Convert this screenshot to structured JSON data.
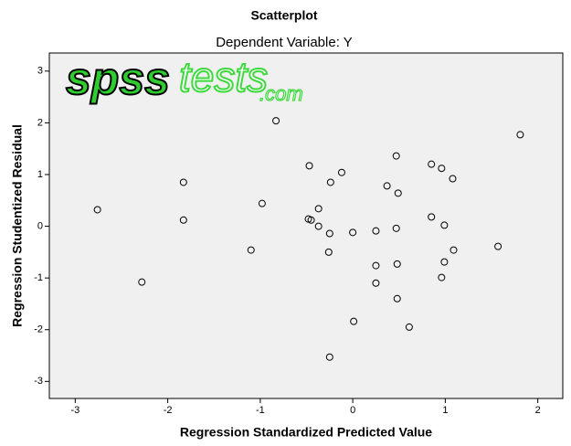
{
  "chart_data": {
    "type": "scatter",
    "title": "Scatterplot",
    "subtitle": "Dependent Variable: Y",
    "x_label": "Regression Standardized Predicted Value",
    "y_label": "Regression Studentized Residual",
    "watermark": [
      "spss",
      "tests",
      ".com"
    ],
    "x": [
      -2.76,
      -2.28,
      -1.83,
      -1.83,
      -0.83,
      -0.98,
      -1.1,
      -0.47,
      -0.48,
      -0.45,
      -0.37,
      -0.37,
      -0.12,
      -0.24,
      -0.25,
      -0.26,
      0.0,
      0.25,
      0.25,
      0.25,
      0.01,
      -0.25,
      0.47,
      0.37,
      0.49,
      0.47,
      0.48,
      0.48,
      0.61,
      0.85,
      0.96,
      1.08,
      0.85,
      0.99,
      1.09,
      0.99,
      0.96,
      1.57,
      1.81
    ],
    "values": [
      0.32,
      -1.08,
      0.85,
      0.12,
      2.04,
      0.44,
      -0.46,
      1.17,
      0.14,
      0.12,
      0.34,
      0.0,
      1.04,
      0.85,
      -0.14,
      -0.5,
      -0.12,
      -0.09,
      -0.76,
      -1.1,
      -1.84,
      -2.53,
      1.36,
      0.78,
      0.64,
      -0.04,
      -0.73,
      -1.4,
      -1.95,
      1.2,
      1.12,
      0.92,
      0.18,
      0.02,
      -0.46,
      -0.69,
      -0.99,
      -0.39,
      1.77
    ],
    "color": "#000000",
    "xlim": [
      -3.28,
      2.27
    ],
    "xticks": [
      -3,
      -2,
      -1,
      0,
      1,
      2
    ],
    "ylim": [
      -3.33,
      3.35
    ],
    "yticks": [
      -3,
      -2,
      -1,
      0,
      1,
      2,
      3
    ],
    "grid": false
  }
}
